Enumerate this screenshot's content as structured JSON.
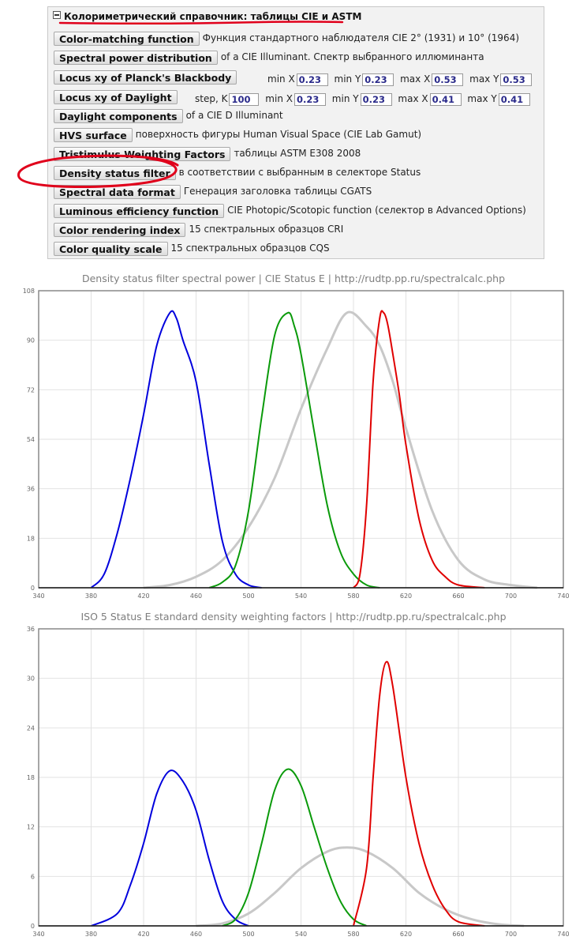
{
  "panel": {
    "title": "Колориметрический справочник: таблицы CIE и ASTM",
    "rows": [
      {
        "button": "Color-matching function",
        "desc": "Функция стандартного наблюдателя CIE 2° (1931) и 10° (1964)"
      },
      {
        "button": "Spectral power distribution",
        "desc": "of a CIE Illuminant. Спектр выбранного иллюминанта"
      },
      {
        "button": "Locus xy of Planck's Blackbody",
        "desc": ""
      },
      {
        "button": "Locus xy of Daylight",
        "desc": ""
      },
      {
        "button": "Daylight components",
        "desc": "of a CIE D Illuminant"
      },
      {
        "button": "HVS surface",
        "desc": "поверхность фигуры Human Visual Space (CIE Lab Gamut)"
      },
      {
        "button": "Tristimulus Weighting Factors",
        "desc": "таблицы ASTM E308 2008"
      },
      {
        "button": "Density status filter",
        "desc": "в соответствии с выбранным в селекторе Status"
      },
      {
        "button": "Spectral data format",
        "desc": "Генерация заголовка таблицы CGATS"
      },
      {
        "button": "Luminous efficiency function",
        "desc": "CIE Photopic/Scotopic function (селектор в Advanced Options)"
      },
      {
        "button": "Color rendering index",
        "desc": "15 спектральных образцов CRI"
      },
      {
        "button": "Color quality scale",
        "desc": "15 спектральных образцов CQS"
      }
    ],
    "planck": {
      "min_x_label": "min X",
      "min_x": "0.23",
      "min_y_label": "min Y",
      "min_y": "0.23",
      "max_x_label": "max X",
      "max_x": "0.53",
      "max_y_label": "max Y",
      "max_y": "0.53"
    },
    "daylight": {
      "step_label": "step, K",
      "step": "100",
      "min_x_label": "min X",
      "min_x": "0.23",
      "min_y_label": "min Y",
      "min_y": "0.23",
      "max_x_label": "max X",
      "max_x": "0.41",
      "max_y_label": "max Y",
      "max_y": "0.41"
    },
    "annotation_color": "#e0001b"
  },
  "chart_data": [
    {
      "type": "line",
      "title": "Density status filter spectral power  |  CIE Status E  |  http://rudtp.pp.ru/spectralcalc.php",
      "xlim": [
        340,
        740
      ],
      "ylim": [
        0,
        108
      ],
      "xticks": [
        340,
        380,
        420,
        460,
        500,
        540,
        580,
        620,
        660,
        700,
        740
      ],
      "yticks": [
        0,
        18,
        36,
        54,
        72,
        90,
        108
      ],
      "grid": true,
      "series": [
        {
          "color": "#c8c8c8",
          "width": 3,
          "x": [
            420,
            440,
            460,
            480,
            500,
            520,
            540,
            560,
            575,
            590,
            600,
            610,
            620,
            640,
            660,
            680,
            700,
            720
          ],
          "y": [
            0,
            1,
            4,
            10,
            22,
            40,
            65,
            87,
            100,
            95,
            88,
            75,
            58,
            28,
            10,
            3,
            1,
            0
          ]
        },
        {
          "color": "#0000dd",
          "width": 2,
          "x": [
            380,
            390,
            400,
            410,
            420,
            430,
            440,
            445,
            450,
            460,
            470,
            480,
            490,
            500,
            510
          ],
          "y": [
            0,
            5,
            20,
            40,
            63,
            88,
            100,
            98,
            90,
            75,
            45,
            17,
            5,
            1,
            0
          ]
        },
        {
          "color": "#0a9a0a",
          "width": 2,
          "x": [
            470,
            480,
            490,
            500,
            510,
            520,
            530,
            535,
            540,
            550,
            560,
            570,
            580,
            590,
            600
          ],
          "y": [
            0,
            2,
            8,
            28,
            62,
            92,
            100,
            95,
            85,
            57,
            30,
            13,
            5,
            1,
            0
          ]
        },
        {
          "color": "#e00000",
          "width": 2,
          "x": [
            580,
            585,
            590,
            595,
            600,
            603,
            606,
            610,
            615,
            620,
            630,
            640,
            650,
            660,
            680
          ],
          "y": [
            0,
            5,
            30,
            75,
            98,
            100,
            96,
            85,
            70,
            52,
            25,
            10,
            4,
            1,
            0
          ]
        }
      ]
    },
    {
      "type": "line",
      "title": "ISO 5 Status E standard density weighting factors  |  http://rudtp.pp.ru/spectralcalc.php",
      "xlim": [
        340,
        740
      ],
      "ylim": [
        0,
        36
      ],
      "xticks": [
        340,
        380,
        420,
        460,
        500,
        540,
        580,
        620,
        660,
        700,
        740
      ],
      "yticks": [
        0,
        6,
        12,
        18,
        24,
        30,
        36
      ],
      "grid": true,
      "series": [
        {
          "color": "#c8c8c8",
          "width": 3,
          "x": [
            460,
            480,
            500,
            520,
            540,
            560,
            575,
            590,
            610,
            630,
            650,
            670,
            690,
            710
          ],
          "y": [
            0,
            0.3,
            1.5,
            4,
            7,
            9,
            9.5,
            9,
            7,
            4,
            2,
            0.8,
            0.2,
            0
          ]
        },
        {
          "color": "#0000dd",
          "width": 2,
          "x": [
            380,
            400,
            410,
            420,
            430,
            440,
            450,
            460,
            470,
            480,
            490,
            500
          ],
          "y": [
            0,
            1.5,
            5,
            10,
            16,
            18.8,
            17.5,
            14,
            8,
            3,
            0.8,
            0
          ]
        },
        {
          "color": "#0a9a0a",
          "width": 2,
          "x": [
            480,
            490,
            500,
            510,
            520,
            530,
            540,
            550,
            560,
            570,
            580,
            590
          ],
          "y": [
            0,
            0.8,
            4,
            10,
            16.5,
            19,
            17,
            12,
            7,
            3,
            0.8,
            0
          ]
        },
        {
          "color": "#e00000",
          "width": 2,
          "x": [
            580,
            590,
            595,
            600,
            605,
            610,
            620,
            630,
            640,
            650,
            660,
            680
          ],
          "y": [
            0,
            7,
            18,
            28,
            32,
            29,
            18,
            10,
            5,
            2,
            0.5,
            0
          ]
        }
      ]
    }
  ]
}
